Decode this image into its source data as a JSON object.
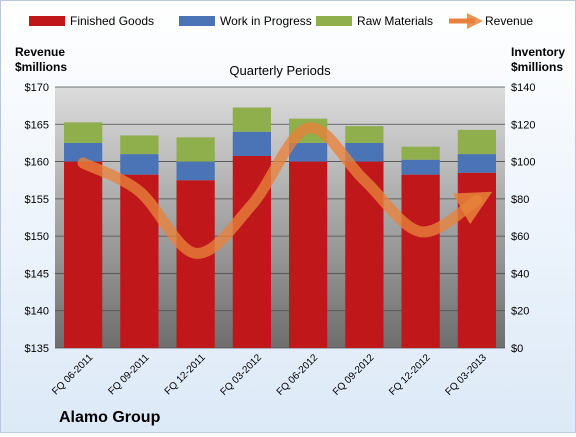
{
  "chart_data": {
    "type": "bar",
    "subtitle": "Quarterly Periods",
    "company": "Alamo Group",
    "left_axis": {
      "label_line1": "Revenue",
      "label_line2": "$millions",
      "min": 135,
      "max": 170,
      "step": 5,
      "prefix": "$"
    },
    "right_axis": {
      "label_line1": "Inventory",
      "label_line2": "$millions",
      "min": 0,
      "max": 140,
      "step": 20,
      "prefix": "$"
    },
    "categories": [
      "FQ 06-2011",
      "FQ 09-2011",
      "FQ 12-2011",
      "FQ 03-2012",
      "FQ 06-2012",
      "FQ 09-2012",
      "FQ 12-2012",
      "FQ 03-2013"
    ],
    "series": [
      {
        "name": "Finished Goods",
        "axis": "right",
        "stack": true,
        "color": "#c0171b",
        "values": [
          100,
          93,
          90,
          103,
          100,
          100,
          93,
          94
        ]
      },
      {
        "name": "Work in Progress",
        "axis": "right",
        "stack": true,
        "color": "#4a74b5",
        "values": [
          10,
          11,
          10,
          13,
          10,
          10,
          8,
          10
        ]
      },
      {
        "name": "Raw Materials",
        "axis": "right",
        "stack": true,
        "color": "#8fae4c",
        "values": [
          11,
          10,
          13,
          13,
          13,
          9,
          7,
          13
        ]
      },
      {
        "name": "Revenue",
        "axis": "left",
        "type": "line",
        "color": "#e8823a",
        "values": [
          159.8,
          156,
          147.7,
          154.2,
          164.5,
          157.5,
          150.6,
          154.8
        ]
      }
    ],
    "legend_placement": "top",
    "grid": true
  }
}
